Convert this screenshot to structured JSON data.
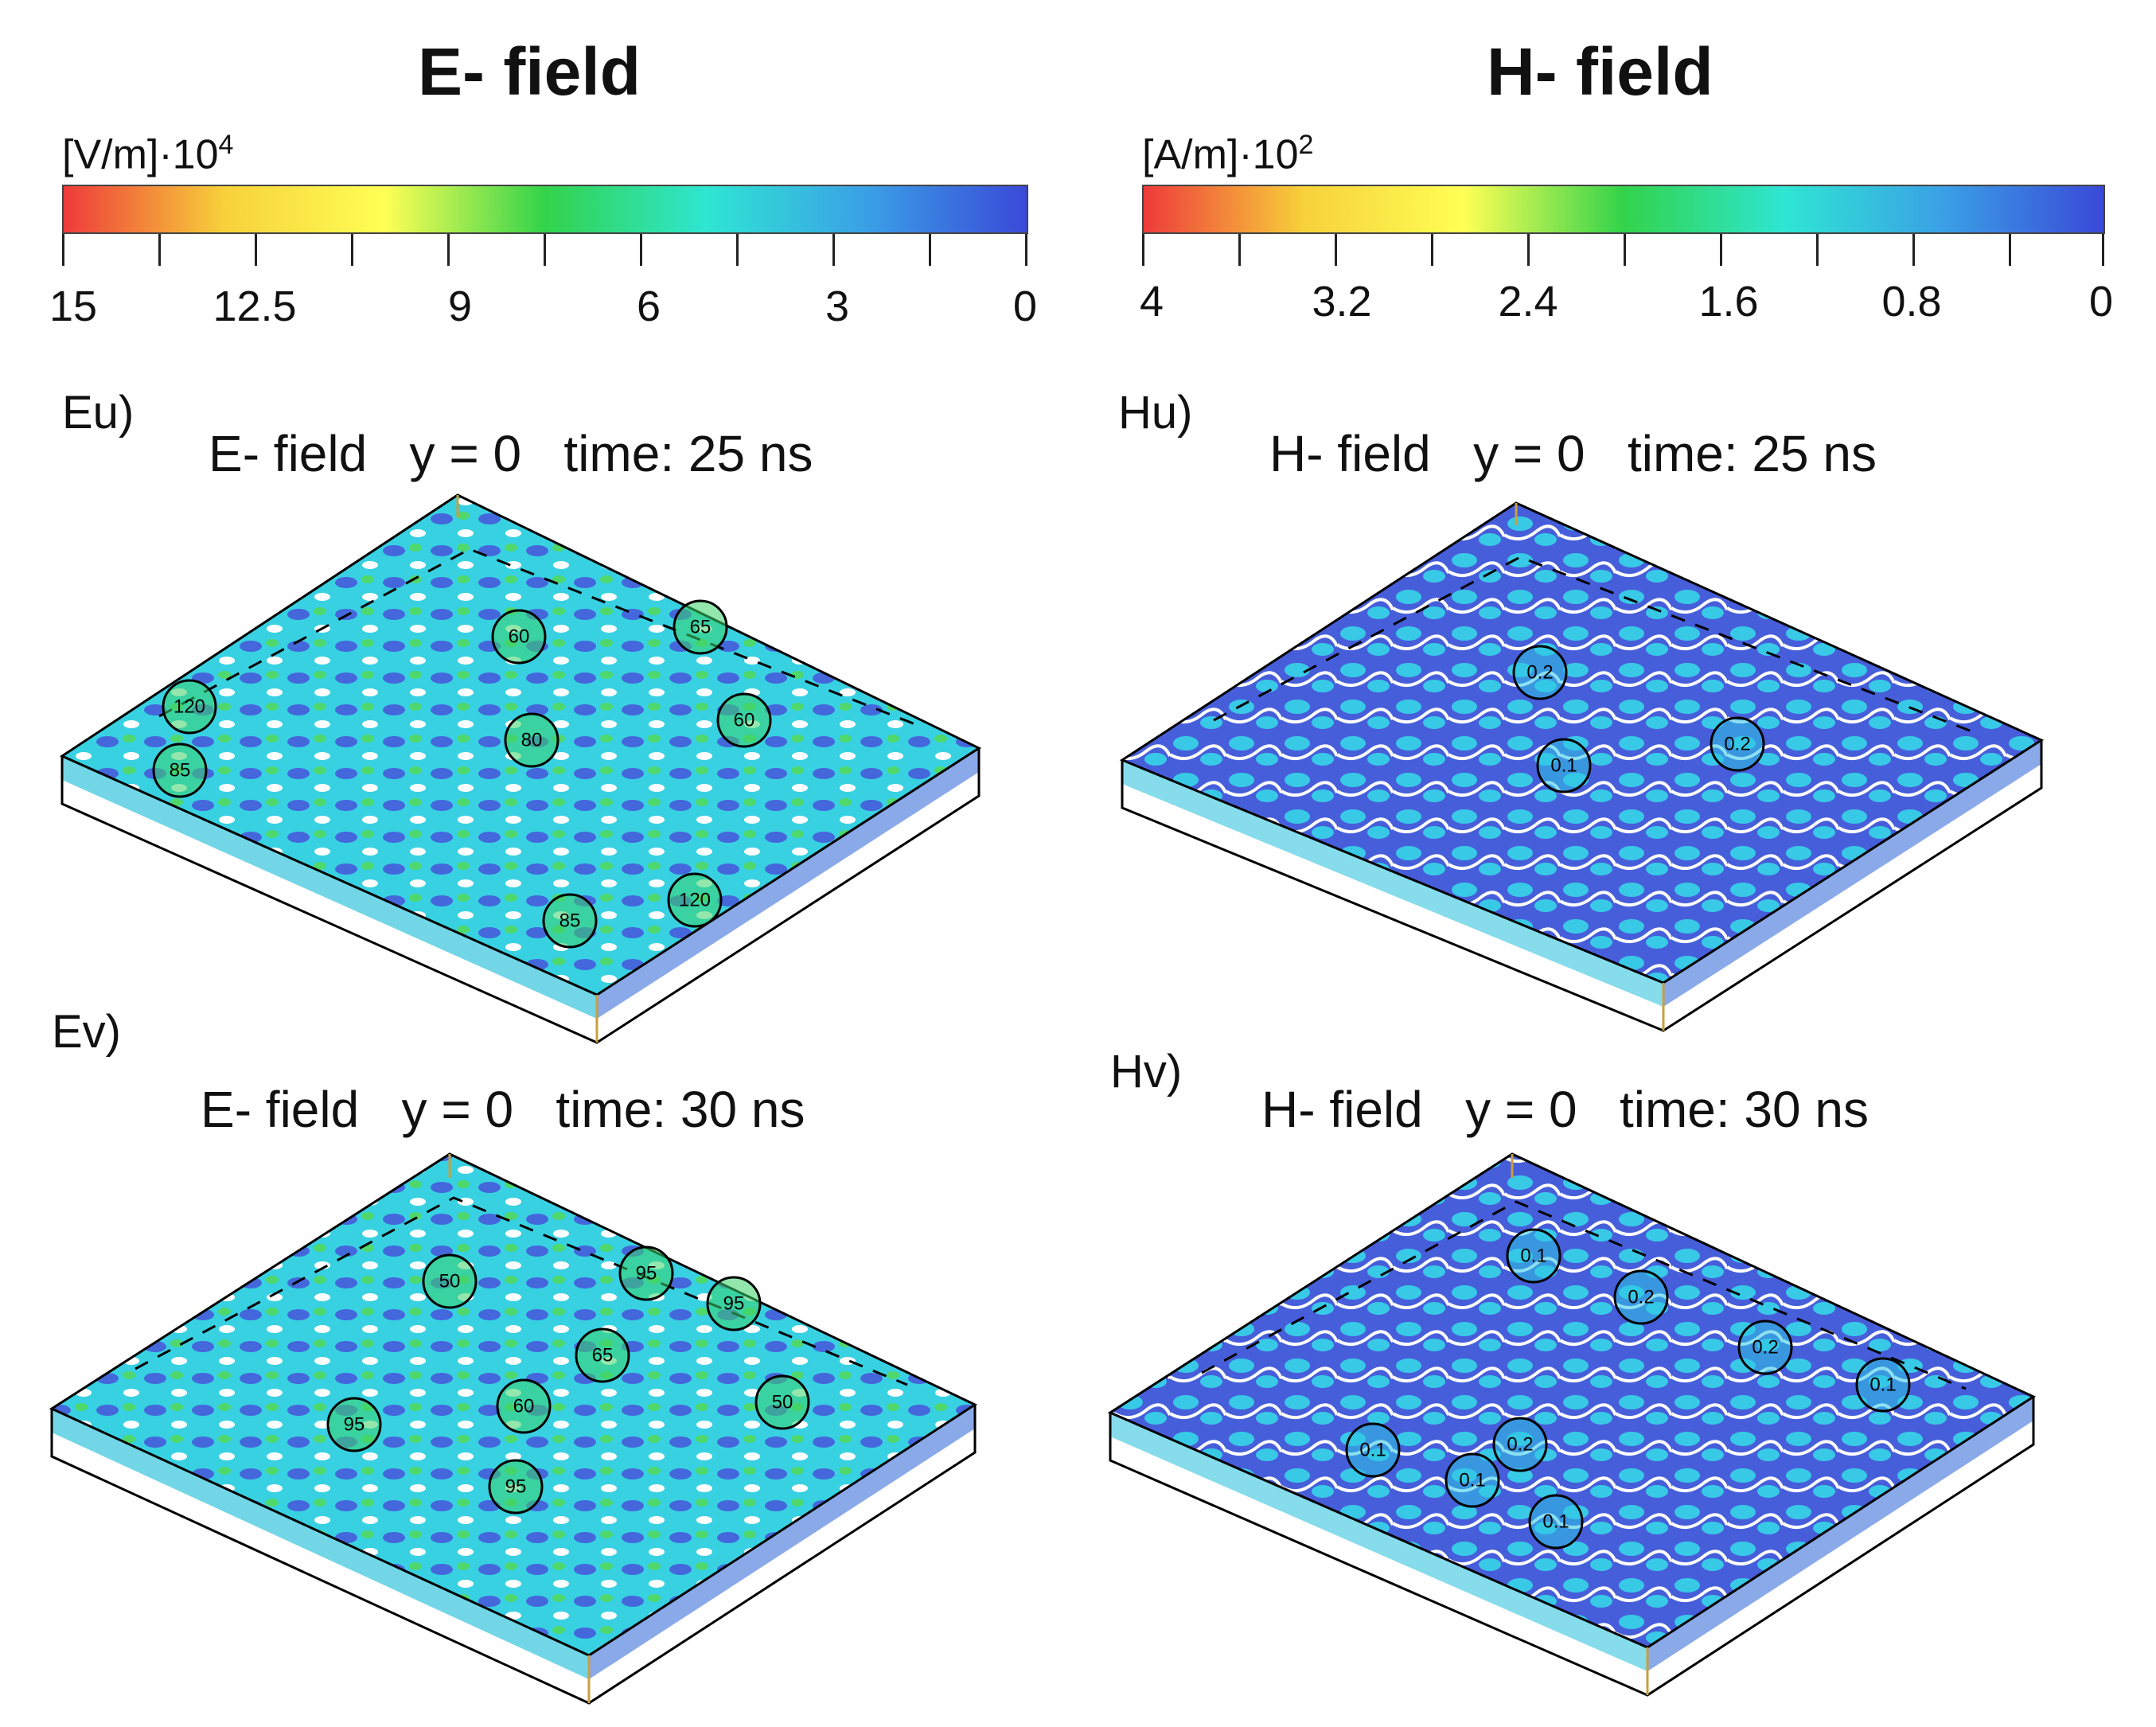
{
  "header": {
    "e_title": "E- field",
    "h_title": "H- field"
  },
  "colorbars": {
    "e": {
      "unit": "[V/m]·10",
      "unit_exp": "4",
      "tick_labels": [
        "15",
        "12.5",
        "9",
        "6",
        "3",
        "0"
      ]
    },
    "h": {
      "unit": "[A/m]·10",
      "unit_exp": "2",
      "tick_labels": [
        "4",
        "3.2",
        "2.4",
        "1.6",
        "0.8",
        "0"
      ]
    },
    "colors": [
      "#ee3a3a",
      "#f7d13a",
      "#ffff55",
      "#32d34a",
      "#2ee6d2",
      "#3aa0e6",
      "#3a49d8"
    ]
  },
  "panels": {
    "eu": {
      "label": "Eu)",
      "title": "E- field   y = 0   time: 25 ns",
      "markers": [
        "60",
        "65",
        "120",
        "80",
        "60",
        "85",
        "85",
        "120"
      ]
    },
    "hu": {
      "label": "Hu)",
      "title": "H- field   y = 0   time: 25 ns",
      "markers": [
        "0.2",
        "0.1",
        "0.2"
      ]
    },
    "ev": {
      "label": "Ev)",
      "title": "E- field   y = 0   time: 30 ns",
      "markers": [
        "50",
        "95",
        "95",
        "65",
        "60",
        "50",
        "95",
        "95"
      ]
    },
    "hv": {
      "label": "Hv)",
      "title": "H- field   y = 0   time: 30 ns",
      "markers": [
        "0.1",
        "0.2",
        "0.2",
        "0.1",
        "0.1",
        "0.2",
        "0.1",
        "0.1"
      ]
    }
  }
}
